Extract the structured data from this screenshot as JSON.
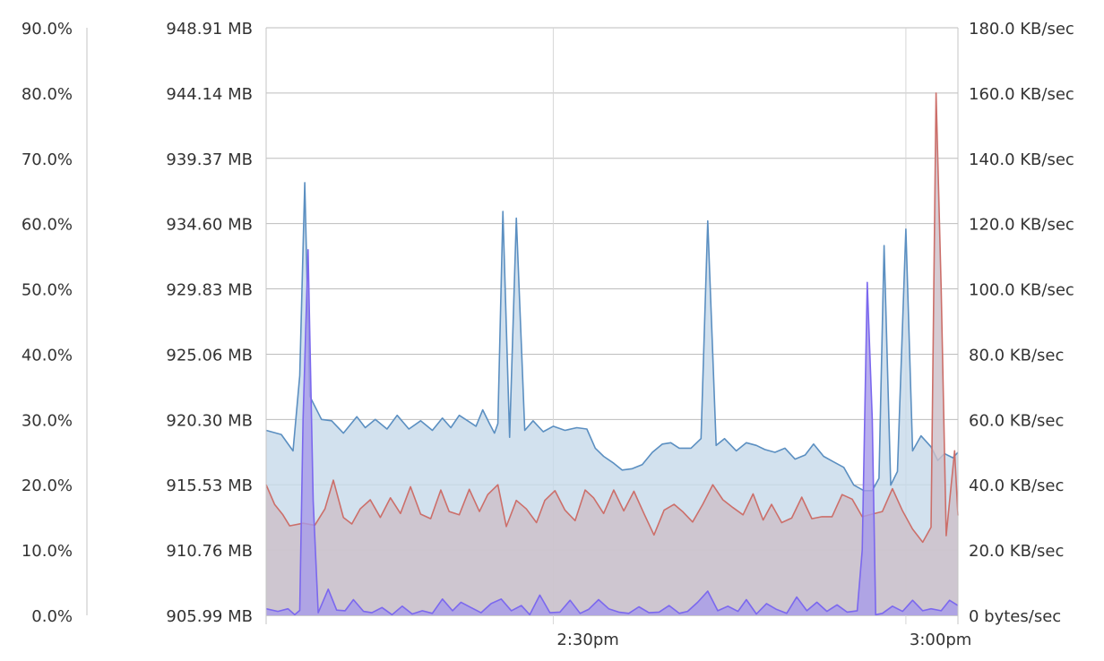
{
  "chart_data": {
    "type": "area",
    "title": "",
    "grid": true,
    "x_ticks": [
      "2:30pm",
      "3:00pm"
    ],
    "axes": {
      "cpu": {
        "ticks": [
          "90.0%",
          "80.0%",
          "70.0%",
          "60.0%",
          "50.0%",
          "40.0%",
          "30.0%",
          "20.0%",
          "10.0%",
          "0.0%"
        ],
        "range": [
          0,
          90
        ]
      },
      "memory": {
        "ticks": [
          "948.91 MB",
          "944.14 MB",
          "939.37 MB",
          "934.60 MB",
          "929.83 MB",
          "925.06 MB",
          "920.30 MB",
          "915.53 MB",
          "910.76 MB",
          "905.99 MB"
        ],
        "range": [
          905.99,
          948.91
        ],
        "unit": "MB"
      },
      "network": {
        "ticks": [
          "180.0 KB/sec",
          "160.0 KB/sec",
          "140.0 KB/sec",
          "120.0 KB/sec",
          "100.0 KB/sec",
          "80.0 KB/sec",
          "60.0 KB/sec",
          "40.0 KB/sec",
          "20.0 KB/sec",
          "0 bytes/sec"
        ],
        "range": [
          0,
          180
        ],
        "unit": "KB/sec"
      }
    },
    "x_range_minutes": [
      2.1,
      43.3
    ],
    "x_tick_positions_minutes": [
      19.2,
      40.2
    ],
    "series": [
      {
        "axis": "memory",
        "color": "#5b8fc1",
        "fill": "#c7d9ea",
        "points": [
          [
            2.1,
            919.5
          ],
          [
            3.0,
            919.2
          ],
          [
            3.7,
            918.0
          ],
          [
            4.1,
            923.5
          ],
          [
            4.4,
            937.6
          ],
          [
            4.7,
            922.0
          ],
          [
            5.4,
            920.3
          ],
          [
            6.0,
            920.2
          ],
          [
            6.7,
            919.3
          ],
          [
            7.5,
            920.5
          ],
          [
            8.0,
            919.7
          ],
          [
            8.6,
            920.3
          ],
          [
            9.3,
            919.6
          ],
          [
            9.9,
            920.6
          ],
          [
            10.6,
            919.6
          ],
          [
            11.3,
            920.2
          ],
          [
            12.0,
            919.5
          ],
          [
            12.6,
            920.4
          ],
          [
            13.1,
            919.7
          ],
          [
            13.6,
            920.6
          ],
          [
            14.1,
            920.2
          ],
          [
            14.6,
            919.8
          ],
          [
            15.0,
            921.0
          ],
          [
            15.4,
            920.0
          ],
          [
            15.7,
            919.3
          ],
          [
            15.9,
            920.0
          ],
          [
            16.2,
            935.5
          ],
          [
            16.6,
            919.0
          ],
          [
            17.0,
            935.0
          ],
          [
            17.5,
            919.5
          ],
          [
            18.0,
            920.2
          ],
          [
            18.6,
            919.4
          ],
          [
            19.2,
            919.8
          ],
          [
            19.9,
            919.5
          ],
          [
            20.6,
            919.7
          ],
          [
            21.2,
            919.6
          ],
          [
            21.7,
            918.2
          ],
          [
            22.2,
            917.6
          ],
          [
            22.8,
            917.1
          ],
          [
            23.3,
            916.6
          ],
          [
            23.9,
            916.7
          ],
          [
            24.5,
            917.0
          ],
          [
            25.1,
            917.9
          ],
          [
            25.7,
            918.5
          ],
          [
            26.2,
            918.6
          ],
          [
            26.7,
            918.2
          ],
          [
            27.4,
            918.2
          ],
          [
            28.0,
            918.9
          ],
          [
            28.4,
            934.8
          ],
          [
            28.9,
            918.4
          ],
          [
            29.4,
            918.9
          ],
          [
            30.1,
            918.0
          ],
          [
            30.7,
            918.6
          ],
          [
            31.3,
            918.4
          ],
          [
            31.8,
            918.1
          ],
          [
            32.4,
            917.9
          ],
          [
            33.0,
            918.2
          ],
          [
            33.6,
            917.4
          ],
          [
            34.2,
            917.7
          ],
          [
            34.7,
            918.5
          ],
          [
            35.3,
            917.6
          ],
          [
            35.9,
            917.2
          ],
          [
            36.5,
            916.8
          ],
          [
            37.1,
            915.5
          ],
          [
            37.7,
            915.1
          ],
          [
            38.2,
            915.1
          ],
          [
            38.6,
            916.0
          ],
          [
            38.9,
            933.0
          ],
          [
            39.3,
            915.5
          ],
          [
            39.7,
            916.5
          ],
          [
            40.2,
            934.2
          ],
          [
            40.6,
            918.0
          ],
          [
            41.1,
            919.1
          ],
          [
            41.7,
            918.3
          ],
          [
            42.1,
            917.3
          ],
          [
            42.5,
            917.8
          ],
          [
            43.0,
            917.5
          ],
          [
            43.3,
            917.9
          ]
        ]
      },
      {
        "axis": "cpu",
        "color": "#cc6f6a",
        "fill": "#cdbfc8",
        "points": [
          [
            2.1,
            20.0
          ],
          [
            2.6,
            17.0
          ],
          [
            3.1,
            15.4
          ],
          [
            3.5,
            13.7
          ],
          [
            4.3,
            14.1
          ],
          [
            5.0,
            13.8
          ],
          [
            5.6,
            16.3
          ],
          [
            6.1,
            20.7
          ],
          [
            6.7,
            15.0
          ],
          [
            7.2,
            14.0
          ],
          [
            7.7,
            16.3
          ],
          [
            8.3,
            17.7
          ],
          [
            8.9,
            15.0
          ],
          [
            9.5,
            18.0
          ],
          [
            10.1,
            15.6
          ],
          [
            10.7,
            19.7
          ],
          [
            11.3,
            15.5
          ],
          [
            11.9,
            14.8
          ],
          [
            12.5,
            19.2
          ],
          [
            13.0,
            15.9
          ],
          [
            13.6,
            15.4
          ],
          [
            14.2,
            19.3
          ],
          [
            14.8,
            15.9
          ],
          [
            15.3,
            18.5
          ],
          [
            15.9,
            20.0
          ],
          [
            16.4,
            13.6
          ],
          [
            17.0,
            17.6
          ],
          [
            17.6,
            16.3
          ],
          [
            18.2,
            14.2
          ],
          [
            18.7,
            17.6
          ],
          [
            19.3,
            19.1
          ],
          [
            19.9,
            16.1
          ],
          [
            20.5,
            14.5
          ],
          [
            21.1,
            19.2
          ],
          [
            21.6,
            18.0
          ],
          [
            22.2,
            15.6
          ],
          [
            22.8,
            19.2
          ],
          [
            23.4,
            16.0
          ],
          [
            24.0,
            19.0
          ],
          [
            24.6,
            15.6
          ],
          [
            25.2,
            12.3
          ],
          [
            25.8,
            16.1
          ],
          [
            26.4,
            17.0
          ],
          [
            26.9,
            15.9
          ],
          [
            27.5,
            14.3
          ],
          [
            28.1,
            17.0
          ],
          [
            28.7,
            20.0
          ],
          [
            29.3,
            17.7
          ],
          [
            29.9,
            16.5
          ],
          [
            30.5,
            15.4
          ],
          [
            31.1,
            18.6
          ],
          [
            31.7,
            14.6
          ],
          [
            32.2,
            17.0
          ],
          [
            32.8,
            14.2
          ],
          [
            33.4,
            14.9
          ],
          [
            34.0,
            18.1
          ],
          [
            34.6,
            14.8
          ],
          [
            35.2,
            15.1
          ],
          [
            35.8,
            15.1
          ],
          [
            36.4,
            18.5
          ],
          [
            37.0,
            17.8
          ],
          [
            37.6,
            15.1
          ],
          [
            38.2,
            15.5
          ],
          [
            38.8,
            15.9
          ],
          [
            39.4,
            19.4
          ],
          [
            40.0,
            16.0
          ],
          [
            40.6,
            13.2
          ],
          [
            41.2,
            11.2
          ],
          [
            41.7,
            13.5
          ],
          [
            42.0,
            80.0
          ],
          [
            42.3,
            50.0
          ],
          [
            42.6,
            12.2
          ],
          [
            42.9,
            20.0
          ],
          [
            43.1,
            25.2
          ],
          [
            43.3,
            15.3
          ]
        ]
      },
      {
        "axis": "network",
        "color": "#7b68ee",
        "fill": "#a89be8",
        "points": [
          [
            2.1,
            2.0
          ],
          [
            2.8,
            1.2
          ],
          [
            3.4,
            2.0
          ],
          [
            3.8,
            0.2
          ],
          [
            4.1,
            1.5
          ],
          [
            4.3,
            60.0
          ],
          [
            4.6,
            112.0
          ],
          [
            4.9,
            35.0
          ],
          [
            5.2,
            0.8
          ],
          [
            5.8,
            8.0
          ],
          [
            6.3,
            1.6
          ],
          [
            6.8,
            1.4
          ],
          [
            7.3,
            4.8
          ],
          [
            7.9,
            1.2
          ],
          [
            8.4,
            0.8
          ],
          [
            9.0,
            2.4
          ],
          [
            9.6,
            0.2
          ],
          [
            10.2,
            2.8
          ],
          [
            10.8,
            0.4
          ],
          [
            11.4,
            1.4
          ],
          [
            12.0,
            0.6
          ],
          [
            12.6,
            5.0
          ],
          [
            13.2,
            1.4
          ],
          [
            13.7,
            4.0
          ],
          [
            14.3,
            2.4
          ],
          [
            14.9,
            0.8
          ],
          [
            15.5,
            3.6
          ],
          [
            16.1,
            5.0
          ],
          [
            16.7,
            1.4
          ],
          [
            17.3,
            3.0
          ],
          [
            17.8,
            0.2
          ],
          [
            18.4,
            6.2
          ],
          [
            19.0,
            0.8
          ],
          [
            19.6,
            1.0
          ],
          [
            20.2,
            4.6
          ],
          [
            20.8,
            0.6
          ],
          [
            21.3,
            1.8
          ],
          [
            21.9,
            4.8
          ],
          [
            22.5,
            2.0
          ],
          [
            23.1,
            1.0
          ],
          [
            23.7,
            0.6
          ],
          [
            24.3,
            2.6
          ],
          [
            24.9,
            0.8
          ],
          [
            25.5,
            1.0
          ],
          [
            26.1,
            3.0
          ],
          [
            26.7,
            0.6
          ],
          [
            27.2,
            1.2
          ],
          [
            27.8,
            4.0
          ],
          [
            28.4,
            7.4
          ],
          [
            29.0,
            1.4
          ],
          [
            29.6,
            2.8
          ],
          [
            30.2,
            1.2
          ],
          [
            30.7,
            4.8
          ],
          [
            31.3,
            0.4
          ],
          [
            31.9,
            3.6
          ],
          [
            32.5,
            1.8
          ],
          [
            33.1,
            0.6
          ],
          [
            33.7,
            5.6
          ],
          [
            34.3,
            1.4
          ],
          [
            34.9,
            4.0
          ],
          [
            35.5,
            1.2
          ],
          [
            36.1,
            3.2
          ],
          [
            36.7,
            1.0
          ],
          [
            37.3,
            1.4
          ],
          [
            37.6,
            20.0
          ],
          [
            37.9,
            102.0
          ],
          [
            38.2,
            60.0
          ],
          [
            38.4,
            0.2
          ],
          [
            38.8,
            0.6
          ],
          [
            39.4,
            2.8
          ],
          [
            40.0,
            1.2
          ],
          [
            40.6,
            4.6
          ],
          [
            41.2,
            1.4
          ],
          [
            41.7,
            2.0
          ],
          [
            42.3,
            1.4
          ],
          [
            42.8,
            4.6
          ],
          [
            43.3,
            3.0
          ]
        ]
      }
    ]
  }
}
